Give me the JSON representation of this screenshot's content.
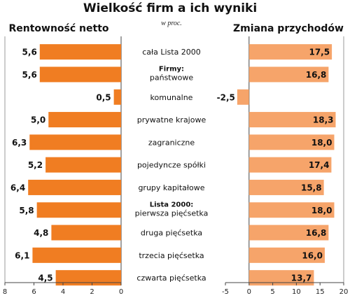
{
  "header": {
    "title": "Wielkość firm a ich wyniki",
    "subtitle": "w proc."
  },
  "colors": {
    "left_bar": "#f07d22",
    "right_bar": "#f6a46a",
    "axis": "#444444",
    "grid": "#999999"
  },
  "chart_data": [
    {
      "type": "bar",
      "orientation": "horizontal",
      "direction": "reversed",
      "title": "Rentowność netto",
      "xlim": [
        0,
        8
      ],
      "ticks": [
        "8",
        "6",
        "4",
        "2",
        "0"
      ],
      "tick_values": [
        8,
        6,
        4,
        2,
        0
      ],
      "values": [
        5.6,
        5.6,
        0.5,
        5.0,
        6.3,
        5.2,
        6.4,
        5.8,
        4.8,
        6.1,
        4.5
      ],
      "labels": [
        "5,6",
        "5,6",
        "0,5",
        "5,0",
        "6,3",
        "5,2",
        "6,4",
        "5,8",
        "4,8",
        "6,1",
        "4,5"
      ]
    },
    {
      "type": "bar",
      "orientation": "horizontal",
      "title": "Zmiana przychodów",
      "xlim": [
        -5,
        20
      ],
      "ticks": [
        "-5",
        "0",
        "5",
        "10",
        "15",
        "20"
      ],
      "tick_values": [
        -5,
        0,
        5,
        10,
        15,
        20
      ],
      "values": [
        17.5,
        16.8,
        -2.5,
        18.3,
        18.0,
        17.4,
        15.8,
        18.0,
        16.8,
        16.0,
        13.7
      ],
      "labels": [
        "17,5",
        "16,8",
        "-2,5",
        "18,3",
        "18,0",
        "17,4",
        "15,8",
        "18,0",
        "16,8",
        "16,0",
        "13,7"
      ]
    }
  ],
  "categories": [
    {
      "group": "",
      "label": "cała Lista 2000"
    },
    {
      "group": "Firmy:",
      "label": "państwowe"
    },
    {
      "group": "",
      "label": "komunalne"
    },
    {
      "group": "",
      "label": "prywatne krajowe"
    },
    {
      "group": "",
      "label": "zagraniczne"
    },
    {
      "group": "",
      "label": "pojedyncze spółki"
    },
    {
      "group": "",
      "label": "grupy kapitałowe"
    },
    {
      "group": "Lista 2000:",
      "label": "pierwsza pięćsetka"
    },
    {
      "group": "",
      "label": "druga pięćsetka"
    },
    {
      "group": "",
      "label": "trzecia pięćsetka"
    },
    {
      "group": "",
      "label": "czwarta pięćsetka"
    }
  ]
}
